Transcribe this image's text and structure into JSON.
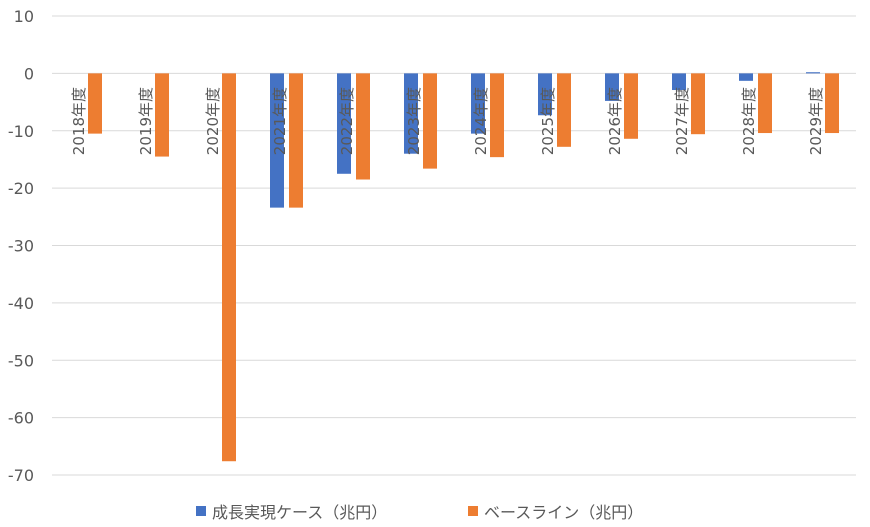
{
  "chart_data": {
    "type": "bar",
    "title": "",
    "xlabel": "",
    "ylabel": "",
    "categories": [
      "2018年度",
      "2019年度",
      "2020年度",
      "2021年度",
      "2022年度",
      "2023年度",
      "2024年度",
      "2025年度",
      "2026年度",
      "2027年度",
      "2028年度",
      "2029年度"
    ],
    "series": [
      {
        "name": "成長実現ケース（兆円）",
        "color": "#4472C4",
        "values": [
          0,
          0,
          0,
          -23.4,
          -17.5,
          -14.0,
          -10.5,
          -7.3,
          -4.8,
          -2.9,
          -1.3,
          0.2
        ]
      },
      {
        "name": "ベースライン（兆円）",
        "color": "#ED7D31",
        "values": [
          -10.5,
          -14.5,
          -67.6,
          -23.4,
          -18.5,
          -16.6,
          -14.6,
          -12.8,
          -11.4,
          -10.6,
          -10.4,
          -10.4
        ]
      }
    ],
    "ylim": [
      -70,
      10
    ],
    "yticks": [
      10,
      0,
      -10,
      -20,
      -30,
      -40,
      -50,
      -60,
      -70
    ],
    "grid": true,
    "legend_position": "bottom"
  }
}
